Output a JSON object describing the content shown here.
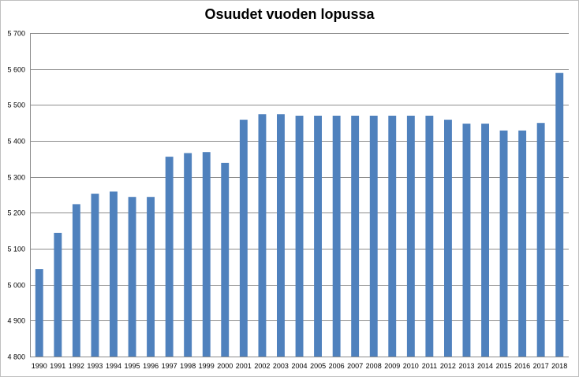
{
  "chart_data": {
    "type": "bar",
    "title": "Osuudet vuoden lopussa",
    "xlabel": "",
    "ylabel": "",
    "ylim": [
      4800,
      5700
    ],
    "y_ticks": [
      4800,
      4900,
      5000,
      5100,
      5200,
      5300,
      5400,
      5500,
      5600,
      5700
    ],
    "y_tick_labels": [
      "4 800",
      "4 900",
      "5 000",
      "5 100",
      "5 200",
      "5 300",
      "5 400",
      "5 500",
      "5 600",
      "5 700"
    ],
    "grid": true,
    "legend": "none",
    "bar_color": "#4f81bd",
    "categories": [
      "1990",
      "1991",
      "1992",
      "1993",
      "1994",
      "1995",
      "1996",
      "1997",
      "1998",
      "1999",
      "2000",
      "2001",
      "2002",
      "2003",
      "2004",
      "2005",
      "2006",
      "2007",
      "2008",
      "2009",
      "2010",
      "2011",
      "2012",
      "2013",
      "2014",
      "2015",
      "2016",
      "2017",
      "2018"
    ],
    "values": [
      5043,
      5144,
      5224,
      5253,
      5259,
      5244,
      5244,
      5356,
      5366,
      5369,
      5339,
      5459,
      5474,
      5474,
      5470,
      5470,
      5470,
      5470,
      5470,
      5470,
      5470,
      5470,
      5459,
      5448,
      5448,
      5429,
      5429,
      5450,
      5589
    ]
  }
}
